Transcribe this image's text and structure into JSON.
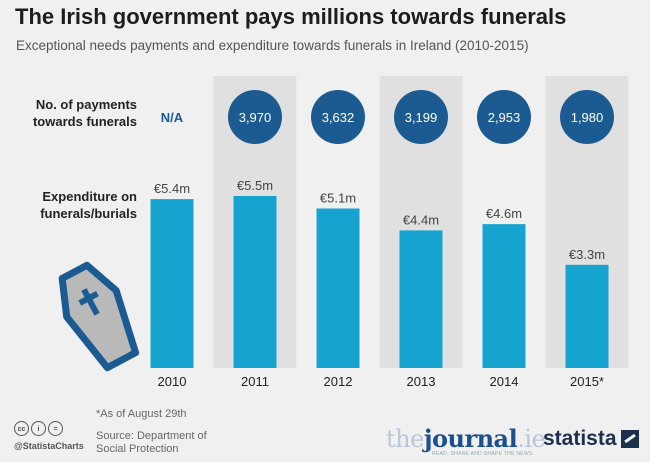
{
  "title": "The Irish government pays millions towards funerals",
  "subtitle": "Exceptional needs payments and expenditure towards funerals in Ireland (2010-2015)",
  "colors": {
    "bar": "#17a3d0",
    "bubble": "#1c5a92",
    "highlight_column": "#e0e0e0",
    "na_text": "#1c5a92",
    "coffin_fill": "#b9b9b9",
    "coffin_border": "#1c5a92"
  },
  "row_labels": {
    "payments": [
      "No. of payments",
      "towards funerals"
    ],
    "expenditure": [
      "Expenditure on",
      "funerals/burials"
    ]
  },
  "chart_data": {
    "type": "bar",
    "categories": [
      "2010",
      "2011",
      "2012",
      "2013",
      "2014",
      "2015*"
    ],
    "series": [
      {
        "values": [
          5.4,
          5.5,
          5.1,
          4.4,
          4.6,
          3.3
        ],
        "labels": [
          "€5.4m",
          "€5.5m",
          "€5.1m",
          "€4.4m",
          "€4.6m",
          "€3.3m"
        ]
      }
    ],
    "payments": [
      null,
      3970,
      3632,
      3199,
      2953,
      1980
    ],
    "payments_labels": [
      "N/A",
      "3,970",
      "3,632",
      "3,199",
      "2,953",
      "1,980"
    ],
    "shaded_columns": [
      "2011",
      "2013",
      "2015*"
    ]
  },
  "icon": "coffin-icon",
  "footer": {
    "note": "*As of August 29th",
    "source": "Source: Department of Social Protection",
    "handle": "@StatistaCharts",
    "journal_logo_a": "the",
    "journal_logo_b": "journal",
    "journal_logo_c": ".ie",
    "journal_tagline": "READ, SHARE AND SHAPE THE NEWS",
    "statista_logo": "statista"
  }
}
